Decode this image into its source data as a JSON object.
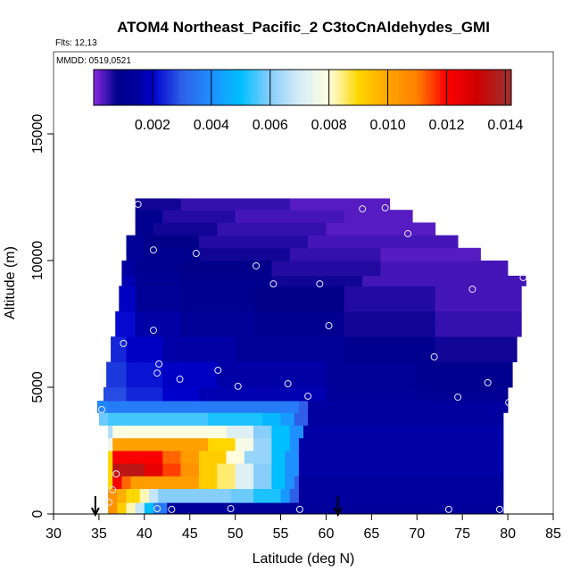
{
  "chart_data": {
    "type": "heatmap",
    "title": "ATOM4 Northeast_Pacific_2 C3toCnAldehydes_GMI",
    "flights_label": "Flts: 12,13",
    "dates_label": "MMDD: 0519,0521",
    "xlabel": "Latitude (deg N)",
    "ylabel": "Altitude (m)",
    "xlim": [
      30,
      85
    ],
    "ylim": [
      0,
      17500
    ],
    "x_ticks": [
      "30",
      "35",
      "40",
      "45",
      "50",
      "55",
      "60",
      "65",
      "70",
      "75",
      "80",
      "85"
    ],
    "y_ticks": [
      "0",
      "5000",
      "10000",
      "15000"
    ],
    "colorbar": {
      "range": [
        0,
        0.0142
      ],
      "ticks": [
        "0.002",
        "0.004",
        "0.006",
        "0.008",
        "0.010",
        "0.012",
        "0.014"
      ],
      "stops": [
        [
          0,
          "#8a2be2"
        ],
        [
          0.0008,
          "#00008b"
        ],
        [
          0.0015,
          "#00009e"
        ],
        [
          0.002,
          "#0000cd"
        ],
        [
          0.003,
          "#2f5fe8"
        ],
        [
          0.004,
          "#1e90ff"
        ],
        [
          0.005,
          "#00bfff"
        ],
        [
          0.006,
          "#87cefa"
        ],
        [
          0.007,
          "#d6ecf8"
        ],
        [
          0.008,
          "#ffffe0"
        ],
        [
          0.009,
          "#ffd700"
        ],
        [
          0.01,
          "#ffa500"
        ],
        [
          0.011,
          "#ff7f00"
        ],
        [
          0.012,
          "#ff0000"
        ],
        [
          0.013,
          "#d00000"
        ],
        [
          0.014,
          "#a52a2a"
        ],
        [
          0.0142,
          "#a52a2a"
        ]
      ]
    },
    "rows": [
      {
        "alt": [
          0,
          450
        ],
        "segs": [
          [
            36,
            37,
            0.0105
          ],
          [
            37,
            38,
            0.0092
          ],
          [
            38,
            39,
            0.0082
          ],
          [
            39,
            40,
            0.0068
          ],
          [
            40,
            41,
            0.005
          ],
          [
            41,
            42.5,
            0.0035
          ],
          [
            42.5,
            79.5,
            0.0014
          ]
        ]
      },
      {
        "alt": [
          450,
          1000
        ],
        "segs": [
          [
            36,
            37,
            0.0105
          ],
          [
            37,
            38,
            0.0098
          ],
          [
            38,
            39.5,
            0.009
          ],
          [
            39.5,
            40.5,
            0.0082
          ],
          [
            40.5,
            41.5,
            0.0068
          ],
          [
            41.5,
            49.5,
            0.006
          ],
          [
            49.5,
            52,
            0.0058
          ],
          [
            52,
            55,
            0.0052
          ],
          [
            55,
            56,
            0.0042
          ],
          [
            56,
            57,
            0.003
          ],
          [
            57,
            79.5,
            0.0015
          ]
        ]
      },
      {
        "alt": [
          1000,
          1500
        ],
        "segs": [
          [
            36,
            36.5,
            0.009
          ],
          [
            36.5,
            37.5,
            0.0122
          ],
          [
            37.5,
            38.5,
            0.0112
          ],
          [
            38.5,
            46,
            0.0102
          ],
          [
            46,
            48,
            0.0092
          ],
          [
            48,
            50,
            0.0085
          ],
          [
            50,
            52,
            0.0072
          ],
          [
            52,
            54,
            0.006
          ],
          [
            54,
            55.5,
            0.005
          ],
          [
            55.5,
            56.5,
            0.004
          ],
          [
            56.5,
            57,
            0.003
          ],
          [
            57,
            79.5,
            0.0015
          ]
        ]
      },
      {
        "alt": [
          1500,
          2000
        ],
        "segs": [
          [
            36,
            36.5,
            0.009
          ],
          [
            36.5,
            40,
            0.0135
          ],
          [
            40,
            42,
            0.0125
          ],
          [
            42,
            44,
            0.0115
          ],
          [
            44,
            46,
            0.0105
          ],
          [
            46,
            48,
            0.0092
          ],
          [
            48,
            50,
            0.0085
          ],
          [
            50,
            52,
            0.0072
          ],
          [
            52,
            54,
            0.006
          ],
          [
            54,
            55.5,
            0.005
          ],
          [
            55.5,
            57,
            0.004
          ],
          [
            57,
            79.5,
            0.0016
          ]
        ]
      },
      {
        "alt": [
          2000,
          2500
        ],
        "segs": [
          [
            36,
            36.5,
            0.009
          ],
          [
            36.5,
            42,
            0.0121
          ],
          [
            42,
            44,
            0.0112
          ],
          [
            44,
            46,
            0.0103
          ],
          [
            46,
            49,
            0.0092
          ],
          [
            49,
            51,
            0.008
          ],
          [
            51,
            54,
            0.0062
          ],
          [
            54,
            55.5,
            0.005
          ],
          [
            55.5,
            57,
            0.004
          ],
          [
            57,
            79.5,
            0.0016
          ]
        ]
      },
      {
        "alt": [
          2500,
          3000
        ],
        "segs": [
          [
            36,
            36.5,
            0.0075
          ],
          [
            36.5,
            47,
            0.0101
          ],
          [
            47,
            50,
            0.009
          ],
          [
            50,
            52,
            0.0078
          ],
          [
            52,
            54,
            0.0062
          ],
          [
            54,
            56,
            0.005
          ],
          [
            56,
            57,
            0.004
          ],
          [
            57,
            79.5,
            0.0016
          ]
        ]
      },
      {
        "alt": [
          3000,
          3500
        ],
        "segs": [
          [
            36,
            36.5,
            0.0065
          ],
          [
            36.5,
            49,
            0.0079
          ],
          [
            49,
            52,
            0.0072
          ],
          [
            52,
            54,
            0.006
          ],
          [
            54,
            56,
            0.005
          ],
          [
            56,
            57.5,
            0.004
          ],
          [
            57.5,
            79.5,
            0.0016
          ]
        ]
      },
      {
        "alt": [
          3500,
          4000
        ],
        "segs": [
          [
            35,
            36,
            0.0058
          ],
          [
            36,
            47,
            0.0055
          ],
          [
            47,
            53,
            0.0052
          ],
          [
            53,
            55,
            0.0048
          ],
          [
            55,
            56.5,
            0.0042
          ],
          [
            56.5,
            58,
            0.003
          ],
          [
            58,
            79.5,
            0.0015
          ]
        ]
      },
      {
        "alt": [
          4000,
          4470
        ],
        "segs": [
          [
            34.8,
            36,
            0.0038
          ],
          [
            36,
            57,
            0.0036
          ],
          [
            57,
            58,
            0.003
          ],
          [
            58,
            80,
            0.0015
          ]
        ]
      },
      {
        "alt": [
          4470,
          5000
        ],
        "segs": [
          [
            35.5,
            38,
            0.0028
          ],
          [
            38,
            42,
            0.0024
          ],
          [
            42,
            46,
            0.002
          ],
          [
            46,
            60,
            0.0017
          ],
          [
            60,
            70,
            0.0014
          ],
          [
            70,
            80,
            0.0011
          ]
        ]
      },
      {
        "alt": [
          5000,
          6000
        ],
        "segs": [
          [
            35.8,
            38,
            0.0026
          ],
          [
            38,
            42,
            0.0022
          ],
          [
            42,
            48,
            0.0019
          ],
          [
            48,
            60,
            0.0016
          ],
          [
            60,
            70,
            0.0012
          ],
          [
            70,
            80.5,
            0.0009
          ]
        ]
      },
      {
        "alt": [
          6000,
          7000
        ],
        "segs": [
          [
            36.3,
            38,
            0.0024
          ],
          [
            38,
            42,
            0.0019
          ],
          [
            42,
            50,
            0.0016
          ],
          [
            50,
            62,
            0.0013
          ],
          [
            62,
            72,
            0.0009
          ],
          [
            72,
            81,
            0.0007
          ]
        ]
      },
      {
        "alt": [
          7000,
          8000
        ],
        "segs": [
          [
            36.8,
            39,
            0.0021
          ],
          [
            39,
            44,
            0.0016
          ],
          [
            44,
            52,
            0.0013
          ],
          [
            52,
            62,
            0.001
          ],
          [
            62,
            72,
            0.0007
          ],
          [
            72,
            81.5,
            0.0005
          ]
        ]
      },
      {
        "alt": [
          8000,
          9000
        ],
        "segs": [
          [
            37.2,
            39,
            0.0019
          ],
          [
            39,
            44,
            0.0013
          ],
          [
            44,
            52,
            0.001
          ],
          [
            52,
            62,
            0.0008
          ],
          [
            62,
            72,
            0.0006
          ],
          [
            72,
            81.5,
            0.0004
          ]
        ]
      },
      {
        "alt": [
          9000,
          9400
        ],
        "segs": [
          [
            37.5,
            39,
            0.0017
          ],
          [
            39,
            44,
            0.0011
          ],
          [
            44,
            54,
            0.0009
          ],
          [
            54,
            64,
            0.0007
          ],
          [
            64,
            82,
            0.0004
          ]
        ]
      },
      {
        "alt": [
          9400,
          10000
        ],
        "segs": [
          [
            37.5,
            39,
            0.0015
          ],
          [
            39,
            44,
            0.001
          ],
          [
            44,
            54,
            0.0008
          ],
          [
            54,
            66,
            0.0006
          ],
          [
            66,
            80,
            0.0004
          ]
        ]
      },
      {
        "alt": [
          10000,
          10500
        ],
        "segs": [
          [
            38,
            40,
            0.0013
          ],
          [
            40,
            46,
            0.0009
          ],
          [
            46,
            56,
            0.0007
          ],
          [
            56,
            66,
            0.0005
          ],
          [
            66,
            77,
            0.0003
          ]
        ]
      },
      {
        "alt": [
          10500,
          11000
        ],
        "segs": [
          [
            38,
            40,
            0.0012
          ],
          [
            40,
            46,
            0.0008
          ],
          [
            46,
            58,
            0.0006
          ],
          [
            58,
            74.5,
            0.0004
          ]
        ]
      },
      {
        "alt": [
          11000,
          11500
        ],
        "segs": [
          [
            39,
            41,
            0.001
          ],
          [
            41,
            48,
            0.0007
          ],
          [
            48,
            60,
            0.0005
          ],
          [
            60,
            72,
            0.0003
          ]
        ]
      },
      {
        "alt": [
          11500,
          12000
        ],
        "segs": [
          [
            39,
            42,
            0.0009
          ],
          [
            42,
            50,
            0.0006
          ],
          [
            50,
            62,
            0.0004
          ],
          [
            62,
            69.5,
            0.0003
          ]
        ]
      },
      {
        "alt": [
          12000,
          12450
        ],
        "segs": [
          [
            39,
            44,
            0.0007
          ],
          [
            44,
            56,
            0.0005
          ],
          [
            56,
            67,
            0.0003
          ]
        ]
      }
    ],
    "observations": [
      [
        39.3,
        12220
      ],
      [
        64.0,
        12040
      ],
      [
        66.5,
        12080
      ],
      [
        69.0,
        11060
      ],
      [
        41.0,
        10420
      ],
      [
        45.7,
        10280
      ],
      [
        52.3,
        9790
      ],
      [
        54.2,
        9080
      ],
      [
        59.3,
        9080
      ],
      [
        76.1,
        8870
      ],
      [
        81.7,
        9330
      ],
      [
        41.0,
        7250
      ],
      [
        60.3,
        7430
      ],
      [
        37.7,
        6730
      ],
      [
        41.6,
        5920
      ],
      [
        41.4,
        5560
      ],
      [
        48.1,
        5670
      ],
      [
        43.9,
        5320
      ],
      [
        71.9,
        6200
      ],
      [
        50.3,
        5040
      ],
      [
        55.8,
        5140
      ],
      [
        58.0,
        4650
      ],
      [
        77.8,
        5180
      ],
      [
        74.5,
        4610
      ],
      [
        80.1,
        4400
      ],
      [
        35.3,
        4120
      ],
      [
        36.9,
        1580
      ],
      [
        36.5,
        950
      ],
      [
        36.1,
        460
      ],
      [
        41.4,
        210
      ],
      [
        43.0,
        180
      ],
      [
        49.5,
        210
      ],
      [
        57.1,
        180
      ],
      [
        73.5,
        180
      ],
      [
        79.1,
        180
      ]
    ],
    "arrows_lat": [
      34.6,
      61.3
    ]
  }
}
